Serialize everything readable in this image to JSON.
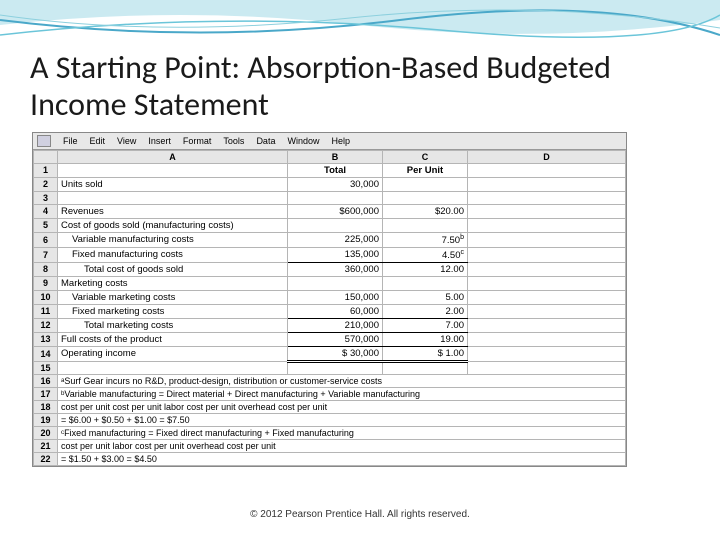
{
  "slide": {
    "title": "A Starting Point: Absorption-Based Budgeted Income Statement",
    "footer": "© 2012 Pearson Prentice Hall. All rights reserved."
  },
  "menubar": {
    "items": [
      "File",
      "Edit",
      "View",
      "Insert",
      "Format",
      "Tools",
      "Data",
      "Window",
      "Help"
    ]
  },
  "sheet": {
    "col_headers": [
      "",
      "A",
      "B",
      "C",
      "D"
    ],
    "b_header": "Total",
    "c_header": "Per Unit",
    "rows": [
      {
        "n": "1",
        "a": "",
        "b_center": "Total",
        "c_center": "Per Unit"
      },
      {
        "n": "2",
        "a": "Units sold",
        "b": "30,000",
        "c": ""
      },
      {
        "n": "3",
        "a": "",
        "b": "",
        "c": ""
      },
      {
        "n": "4",
        "a": "Revenues",
        "b": "$600,000",
        "c": "$20.00"
      },
      {
        "n": "5",
        "a": "Cost of goods sold (manufacturing costs)",
        "b": "",
        "c": ""
      },
      {
        "n": "6",
        "a_indent": 1,
        "a": "Variable manufacturing costs",
        "b": "225,000",
        "c": "7.50",
        "c_sup": "b"
      },
      {
        "n": "7",
        "a_indent": 1,
        "a": "Fixed manufacturing costs",
        "b": "135,000",
        "c": "4.50",
        "c_sup": "c",
        "b_u": true,
        "c_u": true
      },
      {
        "n": "8",
        "a_indent": 2,
        "a": "Total cost of goods sold",
        "b": "360,000",
        "c": "12.00"
      },
      {
        "n": "9",
        "a": "Marketing costs",
        "b": "",
        "c": ""
      },
      {
        "n": "10",
        "a_indent": 1,
        "a": "Variable marketing costs",
        "b": "150,000",
        "c": "5.00"
      },
      {
        "n": "11",
        "a_indent": 1,
        "a": "Fixed marketing costs",
        "b": "60,000",
        "c": "2.00",
        "b_u": true,
        "c_u": true
      },
      {
        "n": "12",
        "a_indent": 2,
        "a": "Total marketing costs",
        "b": "210,000",
        "c": "7.00",
        "b_u": true,
        "c_u": true
      },
      {
        "n": "13",
        "a": "Full costs of the product",
        "b": "570,000",
        "c": "19.00",
        "b_u": true,
        "c_u": true
      },
      {
        "n": "14",
        "a": "Operating income",
        "b": "$  30,000",
        "c": "$  1.00",
        "b_du": true,
        "c_du": true
      },
      {
        "n": "15",
        "a": "",
        "b": "",
        "c": ""
      }
    ],
    "note_rows": [
      {
        "n": "16",
        "txt": "ᵃSurf Gear incurs no R&D, product-design, distribution or customer-service costs"
      },
      {
        "n": "17",
        "txt": "ᵇVariable manufacturing   =   Direct material   +   Direct manufacturing   +   Variable manufacturing"
      },
      {
        "n": "18",
        "txt": "     cost per unit                  cost per unit             labor cost per unit         overhead cost per unit"
      },
      {
        "n": "19",
        "txt": "                            = $6.00 + $0.50 + $1.00 = $7.50"
      },
      {
        "n": "20",
        "txt": "  ᶜFixed manufacturing   =   Fixed direct manufacturing   +   Fixed manufacturing"
      },
      {
        "n": "21",
        "txt": "     cost per unit                  labor cost per unit                overhead cost per unit"
      },
      {
        "n": "22",
        "txt": "                            = $1.50 + $3.00 = $4.50"
      }
    ]
  },
  "colors": {
    "wave1": "#4aa8c9",
    "wave2": "#6bc5d9",
    "wave3": "#a8dce8"
  }
}
